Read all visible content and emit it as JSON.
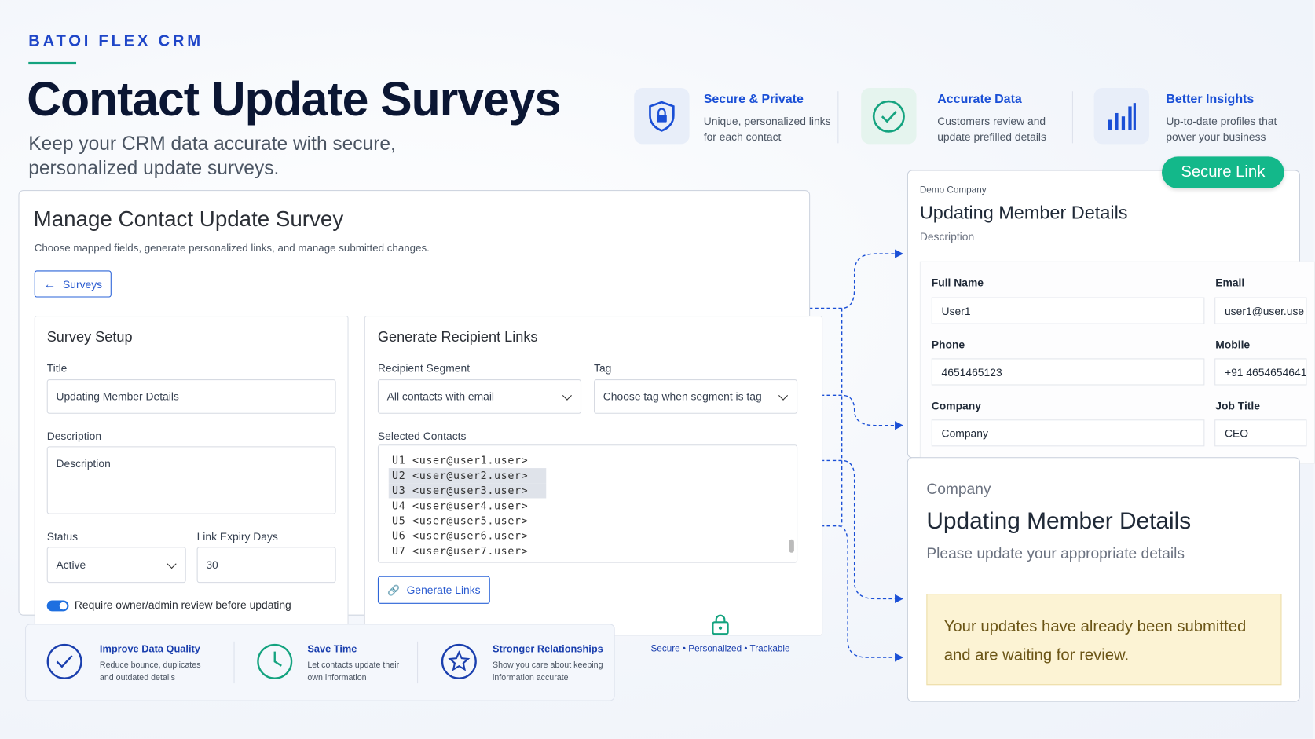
{
  "header": {
    "brand": "BATOI FLEX CRM",
    "title": "Contact Update Surveys",
    "subtitle": "Keep your CRM data accurate with secure, personalized update surveys."
  },
  "features": [
    {
      "title": "Secure & Private",
      "text": "Unique, personalized links for each contact"
    },
    {
      "title": "Accurate Data",
      "text": "Customers review and update prefilled details"
    },
    {
      "title": "Better Insights",
      "text": "Up-to-date profiles that power your business"
    }
  ],
  "manage": {
    "title": "Manage Contact Update Survey",
    "description": "Choose mapped fields, generate personalized links, and manage submitted changes.",
    "back_button": "Surveys",
    "setup": {
      "heading": "Survey Setup",
      "title_label": "Title",
      "title_value": "Updating Member Details",
      "description_label": "Description",
      "description_placeholder": "Description",
      "status_label": "Status",
      "status_value": "Active",
      "expiry_label": "Link Expiry Days",
      "expiry_value": 30,
      "review_toggle": "Require owner/admin review before updating"
    },
    "recipients": {
      "heading": "Generate Recipient Links",
      "segment_label": "Recipient Segment",
      "segment_value": "All contacts with email",
      "tag_label": "Tag",
      "tag_placeholder": "Choose tag when segment is tag",
      "contacts_label": "Selected Contacts",
      "contacts": [
        "U1 <user@user1.user>",
        "U2 <user@user2.user>",
        "U3 <user@user3.user>",
        "U4 <user@user4.user>",
        "U5 <user@user5.user>",
        "U6 <user@user6.user>",
        "U7 <user@user7.user>"
      ],
      "button": "Generate Links"
    }
  },
  "benefits": [
    {
      "title": "Improve Data Quality",
      "text": "Reduce bounce, duplicates and outdated details"
    },
    {
      "title": "Save Time",
      "text": "Let contacts update their own information"
    },
    {
      "title": "Stronger Relationships",
      "text": "Show you care about keeping information accurate"
    }
  ],
  "secure_caption": "Secure • Personalized • Trackable",
  "form_preview": {
    "badge": "Secure Link",
    "company": "Demo Company",
    "title": "Updating Member Details",
    "description": "Description",
    "fields": [
      {
        "label": "Full Name",
        "value": "User1"
      },
      {
        "label": "Email",
        "value": "user1@user.use"
      },
      {
        "label": "Phone",
        "value": "4651465123"
      },
      {
        "label": "Mobile",
        "value": "+91 4654654641"
      },
      {
        "label": "Company",
        "value": "Company"
      },
      {
        "label": "Job Title",
        "value": "CEO"
      }
    ]
  },
  "submitted_preview": {
    "company": "Company",
    "title": "Updating Member Details",
    "subtitle": "Please update your appropriate details",
    "notice": "Your updates have already been submitted and are waiting for review."
  }
}
